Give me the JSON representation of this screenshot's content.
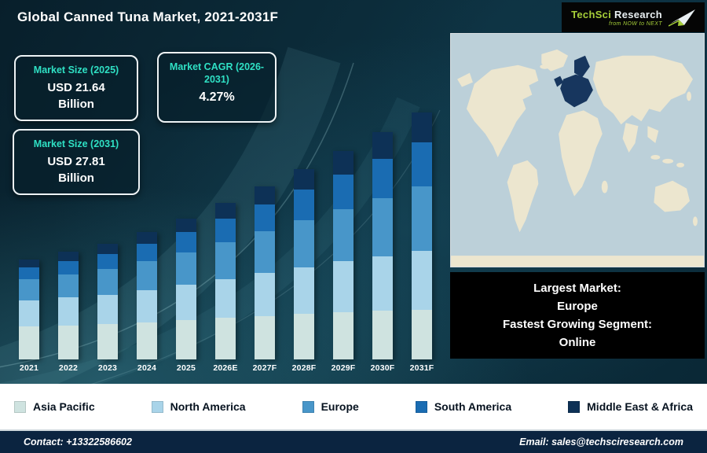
{
  "header": {
    "title": "Global Canned Tuna Market, 2021-2031F",
    "logo": {
      "brand_part1": "TechSci",
      "brand_part2": "Research",
      "tagline": "from NOW to NEXT"
    }
  },
  "stat_cards": [
    {
      "title": "Market Size (2025)",
      "value": "USD 21.64",
      "unit": "Billion"
    },
    {
      "title": "Market CAGR (2026-2031)",
      "value": "4.27%",
      "unit": ""
    },
    {
      "title": "Market Size (2031)",
      "value": "USD 27.81",
      "unit": "Billion"
    }
  ],
  "chart_data": {
    "type": "bar",
    "stacked": true,
    "title": "Global Canned Tuna Market, 2021-2031F",
    "xlabel": "",
    "ylabel": "",
    "ylim": [
      13.5,
      29
    ],
    "legend_position": "bottom",
    "categories": [
      "2021",
      "2022",
      "2023",
      "2024",
      "2025",
      "2026E",
      "2027F",
      "2028F",
      "2029F",
      "2030F",
      "2031F"
    ],
    "totals": [
      19.3,
      19.75,
      20.2,
      20.9,
      21.64,
      22.56,
      23.53,
      24.53,
      25.58,
      26.67,
      27.81
    ],
    "series": [
      {
        "name": "Asia Pacific",
        "color": "#cfe3e0",
        "values": [
          6.37,
          6.26,
          6.14,
          6.08,
          6.02,
          5.98,
          5.93,
          5.86,
          5.78,
          5.68,
          5.56
        ]
      },
      {
        "name": "North America",
        "color": "#a9d4e9",
        "values": [
          5.02,
          5.1,
          5.17,
          5.31,
          5.45,
          5.64,
          5.84,
          6.03,
          6.24,
          6.45,
          6.67
        ]
      },
      {
        "name": "Europe",
        "color": "#4896c9",
        "values": [
          4.05,
          4.25,
          4.44,
          4.7,
          4.98,
          5.3,
          5.65,
          6.01,
          6.4,
          6.8,
          7.23
        ]
      },
      {
        "name": "South America",
        "color": "#1a6cb2",
        "values": [
          2.32,
          2.49,
          2.67,
          2.88,
          3.12,
          3.38,
          3.67,
          3.97,
          4.3,
          4.64,
          5.01
        ]
      },
      {
        "name": "Middle East & Africa",
        "color": "#0d3156",
        "values": [
          1.54,
          1.66,
          1.78,
          1.92,
          2.08,
          2.26,
          2.45,
          2.65,
          2.86,
          3.09,
          3.34
        ]
      }
    ]
  },
  "map_panel": {
    "highlighted_region": "Europe",
    "callout": {
      "lines": [
        "Largest Market:",
        "Europe",
        "Fastest Growing Segment:",
        "Online"
      ]
    }
  },
  "footer": {
    "contact": "Contact: +13322586602",
    "email": "Email: sales@techsciresearch.com"
  },
  "colors": {
    "background_dark": "#0b2c3a",
    "accent_turquoise": "#2fe0c4",
    "map_ocean": "#bcd0d9",
    "map_land": "#ece6cf",
    "map_highlight": "#17365e",
    "legend_bg": "#ffffff",
    "footer_bg": "#0b2440",
    "logo_green": "#a6ce39"
  }
}
